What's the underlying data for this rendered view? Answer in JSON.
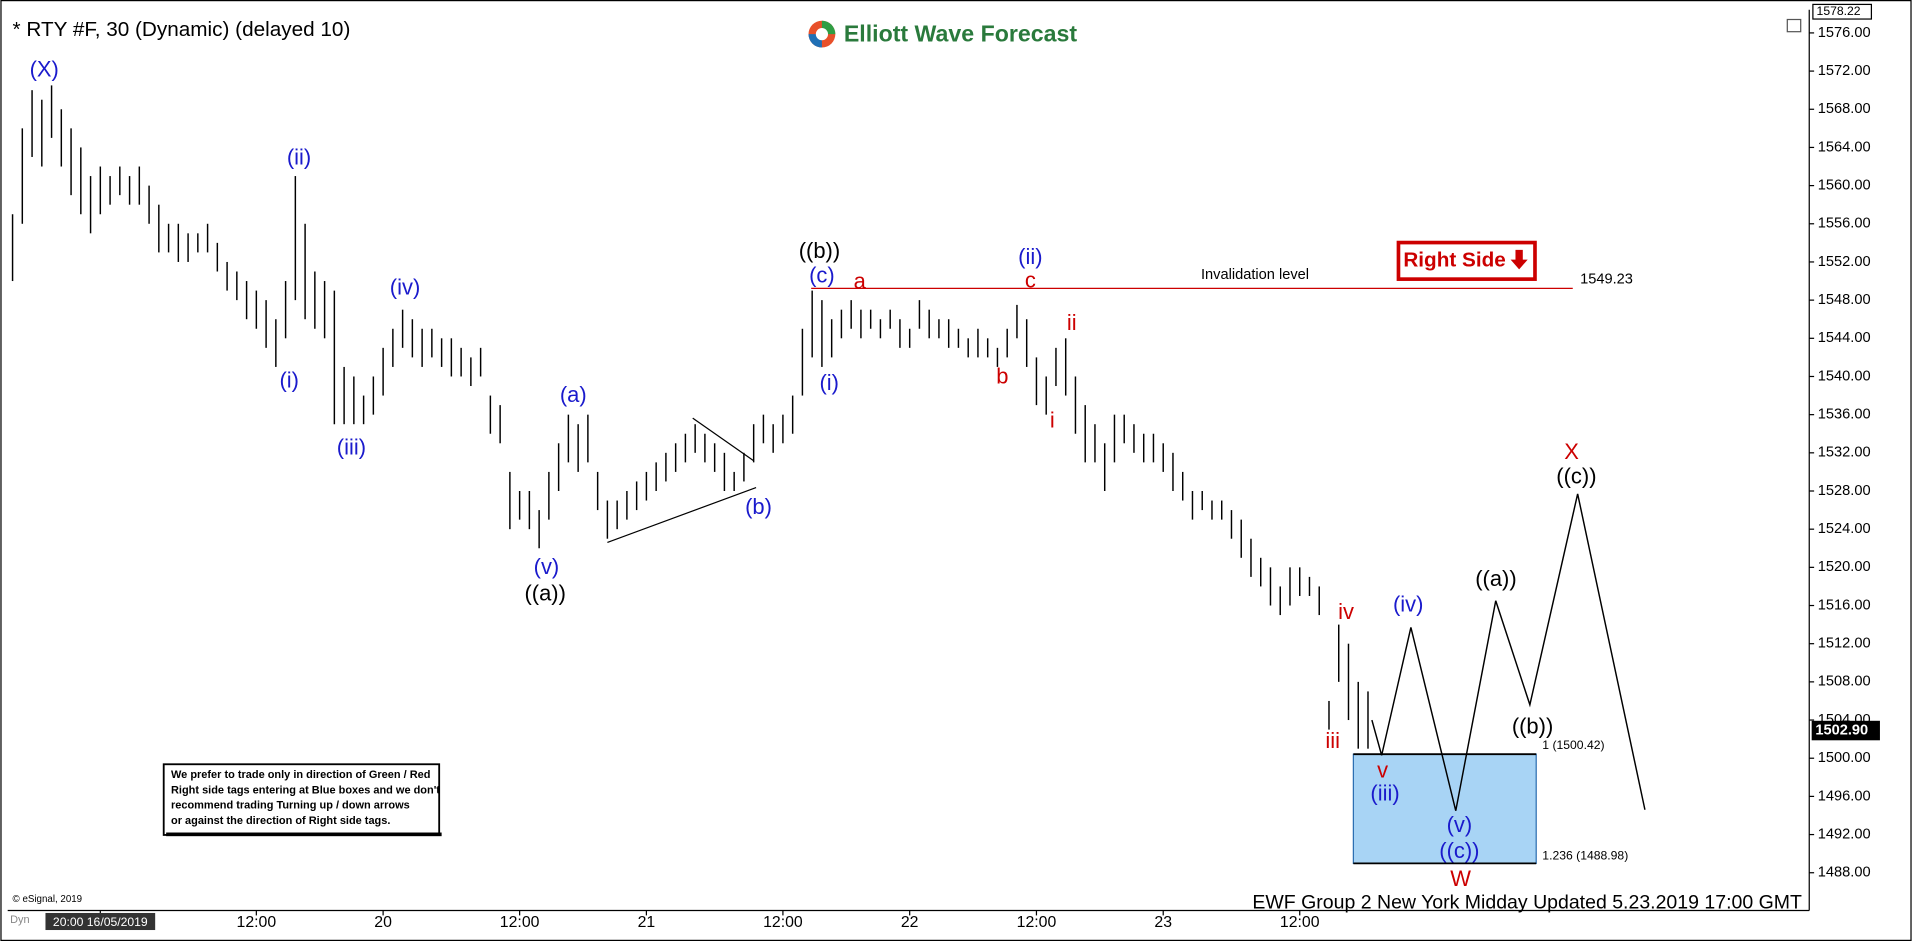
{
  "chart_data": {
    "type": "ohlc",
    "title": "* RTY #F, 30 (Dynamic) (delayed 10)",
    "logo": "Elliott Wave Forecast",
    "footer": "EWF Group 2 New York Midday Updated 5.23.2019 17:00 GMT",
    "copyright": "© eSignal, 2019",
    "dyn": "Dyn",
    "tag": "Right Side",
    "note": [
      "We prefer to trade only in direction of Green / Red",
      "Right side tags entering at Blue boxes and we don't",
      "recommend trading Turning up / down arrows",
      "or against the direction of Right side tags."
    ],
    "color": "#000000",
    "xlim": [
      0,
      184
    ],
    "xticks": [
      {
        "value": 9,
        "label": "20:00 16/05/2019"
      },
      {
        "value": 25,
        "label": "12:00"
      },
      {
        "value": 38,
        "label": "20"
      },
      {
        "value": 52,
        "label": "12:00"
      },
      {
        "value": 65,
        "label": "21"
      },
      {
        "value": 79,
        "label": "12:00"
      },
      {
        "value": 92,
        "label": "22"
      },
      {
        "value": 105,
        "label": "12:00"
      },
      {
        "value": 118,
        "label": "23"
      },
      {
        "value": 132,
        "label": "12:00"
      }
    ],
    "ylim": [
      1488,
      1576
    ],
    "yticks": [
      {
        "value": 1488,
        "label": "1488.00"
      },
      {
        "value": 1492,
        "label": "1492.00"
      },
      {
        "value": 1496,
        "label": "1496.00"
      },
      {
        "value": 1500,
        "label": "1500.00"
      },
      {
        "value": 1504,
        "label": "1504.00"
      },
      {
        "value": 1508,
        "label": "1508.00"
      },
      {
        "value": 1512,
        "label": "1512.00"
      },
      {
        "value": 1516,
        "label": "1516.00"
      },
      {
        "value": 1520,
        "label": "1520.00"
      },
      {
        "value": 1524,
        "label": "1524.00"
      },
      {
        "value": 1528,
        "label": "1528.00"
      },
      {
        "value": 1532,
        "label": "1532.00"
      },
      {
        "value": 1536,
        "label": "1536.00"
      },
      {
        "value": 1540,
        "label": "1540.00"
      },
      {
        "value": 1544,
        "label": "1544.00"
      },
      {
        "value": 1548,
        "label": "1548.00"
      },
      {
        "value": 1552,
        "label": "1552.00"
      },
      {
        "value": 1556,
        "label": "1556.00"
      },
      {
        "value": 1560,
        "label": "1560.00"
      },
      {
        "value": 1564,
        "label": "1564.00"
      },
      {
        "value": 1568,
        "label": "1568.00"
      },
      {
        "value": 1572,
        "label": "1572.00"
      },
      {
        "value": 1576,
        "label": "1576.00"
      }
    ],
    "top_price": {
      "value": 1578.22,
      "label": "1578.22"
    },
    "last_price": {
      "value": 1502.9,
      "label": "1502.90"
    },
    "high": [
      1557,
      1566,
      1570,
      1569,
      1570.5,
      1568,
      1566,
      1564,
      1561,
      1562,
      1561,
      1562,
      1561,
      1562,
      1560,
      1558,
      1556,
      1556,
      1555,
      1555,
      1556,
      1554,
      1552,
      1551,
      1550,
      1549,
      1548,
      1546,
      1550,
      1561,
      1556,
      1551,
      1550,
      1549,
      1541,
      1540,
      1538,
      1540,
      1543,
      1545,
      1547,
      1546,
      1545,
      1545,
      1544,
      1544,
      1543,
      1542,
      1543,
      1538,
      1537,
      1530,
      1528,
      1528,
      1526,
      1530,
      1533,
      1536,
      1535,
      1536,
      1530,
      1527,
      1527,
      1528,
      1529,
      1530,
      1531,
      1532,
      1533,
      1534,
      1535,
      1534,
      1533,
      1532,
      1530,
      1532,
      1535,
      1536,
      1535,
      1536,
      1538,
      1545,
      1549,
      1548,
      1546,
      1547,
      1548,
      1547,
      1547,
      1546,
      1547,
      1546,
      1545,
      1548,
      1547,
      1546,
      1546,
      1545,
      1544,
      1545,
      1544,
      1543,
      1545,
      1547.5,
      1546,
      1542,
      1540,
      1543,
      1544,
      1540,
      1537,
      1535,
      1533,
      1536,
      1536,
      1535,
      1534,
      1534,
      1533,
      1532,
      1530,
      1528,
      1528,
      1527,
      1527,
      1526,
      1525,
      1523,
      1521,
      1520,
      1518,
      1520,
      1520,
      1519,
      1518,
      1506,
      1514,
      1512,
      1508,
      1507
    ],
    "low": [
      1550,
      1556,
      1563,
      1562,
      1565,
      1562,
      1559,
      1557,
      1555,
      1557,
      1558,
      1559,
      1558,
      1558,
      1556,
      1553,
      1553,
      1552,
      1552,
      1553,
      1553,
      1551,
      1549,
      1548,
      1546,
      1545,
      1543,
      1541,
      1544,
      1548,
      1546,
      1545,
      1544,
      1535,
      1535,
      1535,
      1535,
      1536,
      1538,
      1541,
      1543,
      1542,
      1541,
      1542,
      1541,
      1540,
      1540,
      1539,
      1540,
      1534,
      1533,
      1524,
      1525,
      1524,
      1522,
      1525,
      1528,
      1531,
      1530,
      1531,
      1526,
      1523,
      1524,
      1525,
      1526,
      1527,
      1528,
      1529,
      1530,
      1531,
      1532,
      1531,
      1530,
      1528,
      1528,
      1529,
      1531,
      1533,
      1532,
      1533,
      1534,
      1538,
      1542,
      1541,
      1542,
      1544,
      1545,
      1544,
      1545,
      1544,
      1545,
      1543,
      1543,
      1545,
      1544,
      1544,
      1543,
      1543,
      1542,
      1542,
      1542,
      1541,
      1542,
      1544,
      1541,
      1537,
      1536,
      1539,
      1538,
      1534,
      1531,
      1531,
      1528,
      1531,
      1533,
      1532,
      1531,
      1531,
      1530,
      1528,
      1527,
      1525,
      1526,
      1525,
      1525,
      1523,
      1521,
      1519,
      1518,
      1516,
      1515,
      1516,
      1517,
      1517,
      1515,
      1503,
      1508,
      1504,
      1501,
      1501
    ],
    "invalidation": {
      "value": 1549.23,
      "x": [
        81.9,
        160
      ],
      "label": "1549.23",
      "text": "Invalidation level",
      "color": "#cc0000"
    },
    "projection": {
      "x": [
        139.4,
        140.4,
        143.4,
        148,
        152.1,
        155.6,
        160.5,
        167.4
      ],
      "y": [
        1504,
        1500.3,
        1513.7,
        1494.5,
        1516.5,
        1505.6,
        1527.7,
        1494.6
      ],
      "color": "#000000"
    },
    "box": {
      "x": [
        137.5,
        156.25
      ],
      "y": [
        1488.98,
        1500.42
      ],
      "color": "#a8d4f5",
      "top_label": "1 (1500.42)",
      "bottom_label": "1.236 (1488.98)"
    },
    "annotations": [
      {
        "text": "(X)",
        "color": "#1a1acc"
      },
      {
        "text": "(i)",
        "color": "#1a1acc"
      },
      {
        "text": "(ii)",
        "color": "#1a1acc"
      },
      {
        "text": "(iii)",
        "color": "#1a1acc"
      },
      {
        "text": "(iv)",
        "color": "#1a1acc"
      },
      {
        "text": "(v)",
        "color": "#1a1acc"
      },
      {
        "text": "((a))",
        "color": "#000000"
      },
      {
        "text": "(a)",
        "color": "#1a1acc"
      },
      {
        "text": "(b)",
        "color": "#1a1acc"
      },
      {
        "text": "((b))",
        "color": "#000000"
      },
      {
        "text": "(c)",
        "color": "#1a1acc"
      },
      {
        "text": "a",
        "color": "#cc0000"
      },
      {
        "text": "(ii)",
        "color": "#1a1acc"
      },
      {
        "text": "c",
        "color": "#cc0000"
      },
      {
        "text": "(i)",
        "color": "#1a1acc"
      },
      {
        "text": "b",
        "color": "#cc0000"
      },
      {
        "text": "ii",
        "color": "#cc0000"
      },
      {
        "text": "i",
        "color": "#cc0000"
      },
      {
        "text": "iii",
        "color": "#cc0000"
      },
      {
        "text": "iv",
        "color": "#cc0000"
      },
      {
        "text": "v",
        "color": "#cc0000"
      },
      {
        "text": "(iii)",
        "color": "#1a1acc"
      },
      {
        "text": "(iv)",
        "color": "#1a1acc"
      },
      {
        "text": "(v)",
        "color": "#1a1acc"
      },
      {
        "text": "((c))",
        "color": "#1a1acc"
      },
      {
        "text": "W",
        "color": "#cc0000"
      },
      {
        "text": "((a))",
        "color": "#000000"
      },
      {
        "text": "((b))",
        "color": "#000000"
      },
      {
        "text": "X",
        "color": "#cc0000"
      },
      {
        "text": "((c))",
        "color": "#000000"
      }
    ]
  }
}
